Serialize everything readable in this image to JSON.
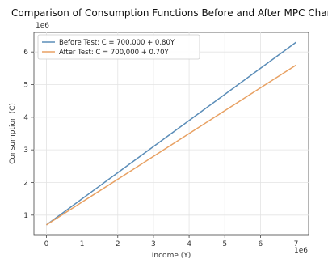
{
  "chart_data": {
    "type": "line",
    "title": "Comparison of Consumption Functions Before and After MPC Change",
    "xlabel": "Income (Y)",
    "ylabel": "Consumption (C)",
    "x_scale_label": "1e6",
    "y_scale_label": "1e6",
    "xlim": [
      -0.35,
      7.35
    ],
    "ylim": [
      0.4,
      6.6
    ],
    "xticks": [
      "0",
      "1",
      "2",
      "3",
      "4",
      "5",
      "6",
      "7"
    ],
    "yticks": [
      "1",
      "2",
      "3",
      "4",
      "5",
      "6"
    ],
    "x": [
      0,
      1,
      2,
      3,
      4,
      5,
      6,
      7
    ],
    "series": [
      {
        "name": "Before Test: C = 700,000 + 0.80Y",
        "values": [
          0.7,
          1.5,
          2.3,
          3.1,
          3.9,
          4.7,
          5.5,
          6.3
        ],
        "color": "#5b8db8"
      },
      {
        "name": "After Test: C = 700,000 + 0.70Y",
        "values": [
          0.7,
          1.4,
          2.1,
          2.8,
          3.5,
          4.2,
          4.9,
          5.6
        ],
        "color": "#e8a163"
      }
    ],
    "grid": true,
    "legend_position": "top-left"
  }
}
